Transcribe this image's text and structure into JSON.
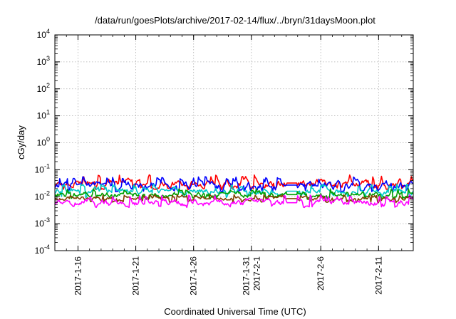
{
  "chart_data": {
    "type": "line",
    "title": "/data/run/goesPlots/archive/2017-02-14/flux/../bryn/31daysMoon.plot",
    "xlabel": "Coordinated Universal Time (UTC)",
    "ylabel": "cGy/day",
    "yscale": "log",
    "ylim": [
      0.0001,
      10000
    ],
    "xlim": [
      "2017-01-14",
      "2017-02-14"
    ],
    "grid": true,
    "y_ticks": [
      {
        "base": "10",
        "exp": "-4"
      },
      {
        "base": "10",
        "exp": "-3"
      },
      {
        "base": "10",
        "exp": "-2"
      },
      {
        "base": "10",
        "exp": "-1"
      },
      {
        "base": "10",
        "exp": "0"
      },
      {
        "base": "10",
        "exp": "1"
      },
      {
        "base": "10",
        "exp": "2"
      },
      {
        "base": "10",
        "exp": "3"
      },
      {
        "base": "10",
        "exp": "4"
      }
    ],
    "x_ticks": [
      {
        "date": "2017-01-16",
        "labels": [
          "2017-1-16"
        ]
      },
      {
        "date": "2017-01-21",
        "labels": [
          "2017-1-21"
        ]
      },
      {
        "date": "2017-01-26",
        "labels": [
          "2017-1-26"
        ]
      },
      {
        "date": "2017-01-31",
        "labels": [
          "2017-1-31",
          "2017-2-1"
        ]
      },
      {
        "date": "2017-02-06",
        "labels": [
          "2017-2-6"
        ]
      },
      {
        "date": "2017-02-11",
        "labels": [
          "2017-2-11"
        ]
      }
    ],
    "data_gap": [
      "2017-02-03",
      "2017-02-04"
    ],
    "series": [
      {
        "color": "#ff0000",
        "x": [
          "2017-01-14",
          "2017-02-14"
        ],
        "y_range": [
          0.018,
          0.065
        ],
        "typical": 0.032
      },
      {
        "color": "#0000ff",
        "x": [
          "2017-01-14",
          "2017-02-14"
        ],
        "y_range": [
          0.015,
          0.055
        ],
        "typical": 0.027
      },
      {
        "color": "#00c8c8",
        "x": [
          "2017-01-14",
          "2017-02-14"
        ],
        "y_range": [
          0.009,
          0.03
        ],
        "typical": 0.016
      },
      {
        "color": "#00a000",
        "x": [
          "2017-01-14",
          "2017-02-14"
        ],
        "y_range": [
          0.008,
          0.02
        ],
        "typical": 0.012
      },
      {
        "color": "#804000",
        "x": [
          "2017-01-14",
          "2017-02-14"
        ],
        "y_range": [
          0.006,
          0.012
        ],
        "typical": 0.0085
      },
      {
        "color": "#ff00ff",
        "x": [
          "2017-01-14",
          "2017-02-14"
        ],
        "y_range": [
          0.004,
          0.012
        ],
        "typical": 0.006
      }
    ]
  }
}
